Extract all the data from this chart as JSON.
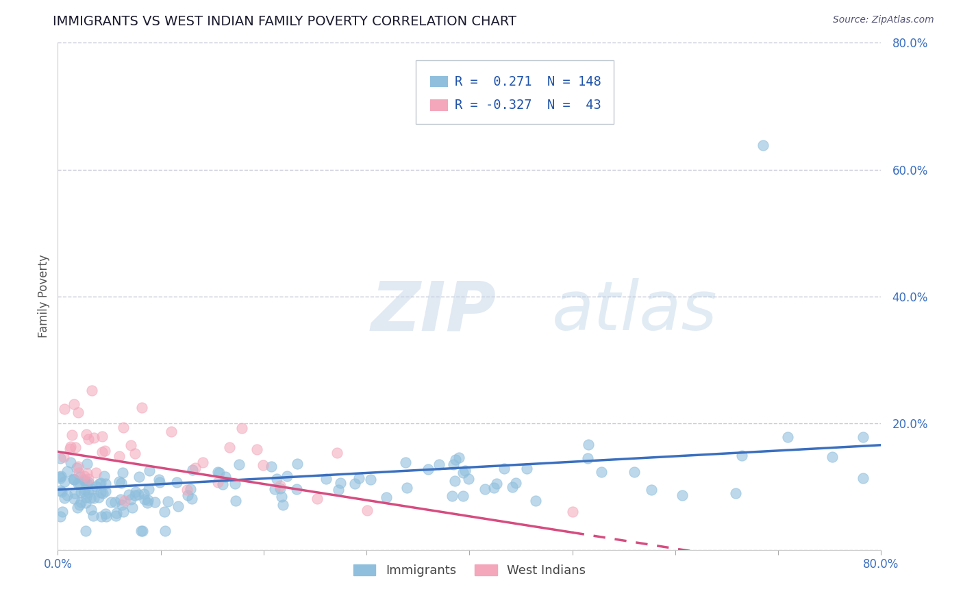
{
  "title": "IMMIGRANTS VS WEST INDIAN FAMILY POVERTY CORRELATION CHART",
  "source_text": "Source: ZipAtlas.com",
  "ylabel": "Family Poverty",
  "watermark_zip": "ZIP",
  "watermark_atlas": "atlas",
  "xlim": [
    0.0,
    0.8
  ],
  "ylim": [
    0.0,
    0.8
  ],
  "ytick_positions": [
    0.0,
    0.2,
    0.4,
    0.6,
    0.8
  ],
  "yticklabels": [
    "",
    "20.0%",
    "40.0%",
    "60.0%",
    "80.0%"
  ],
  "xtick_positions": [
    0.0,
    0.1,
    0.2,
    0.3,
    0.4,
    0.5,
    0.6,
    0.7,
    0.8
  ],
  "xticklabels": [
    "0.0%",
    "",
    "",
    "",
    "",
    "",
    "",
    "",
    "80.0%"
  ],
  "legend_R1": " 0.271",
  "legend_N1": "148",
  "legend_R2": "-0.327",
  "legend_N2": " 43",
  "blue_color": "#90bfdd",
  "pink_color": "#f4a6ba",
  "trend_blue": "#3a6fbf",
  "trend_pink": "#d64c7f",
  "title_color": "#1a1a2e",
  "source_color": "#555577",
  "tick_color": "#3a6fbf",
  "ylabel_color": "#555555",
  "legend_color": "#2255aa",
  "background_color": "#ffffff",
  "grid_color": "#c8c8d8",
  "blue_scatter_alpha": 0.6,
  "pink_scatter_alpha": 0.55,
  "marker_size": 120,
  "trend_lw": 2.5,
  "imm_seed": 7,
  "wi_seed": 13
}
